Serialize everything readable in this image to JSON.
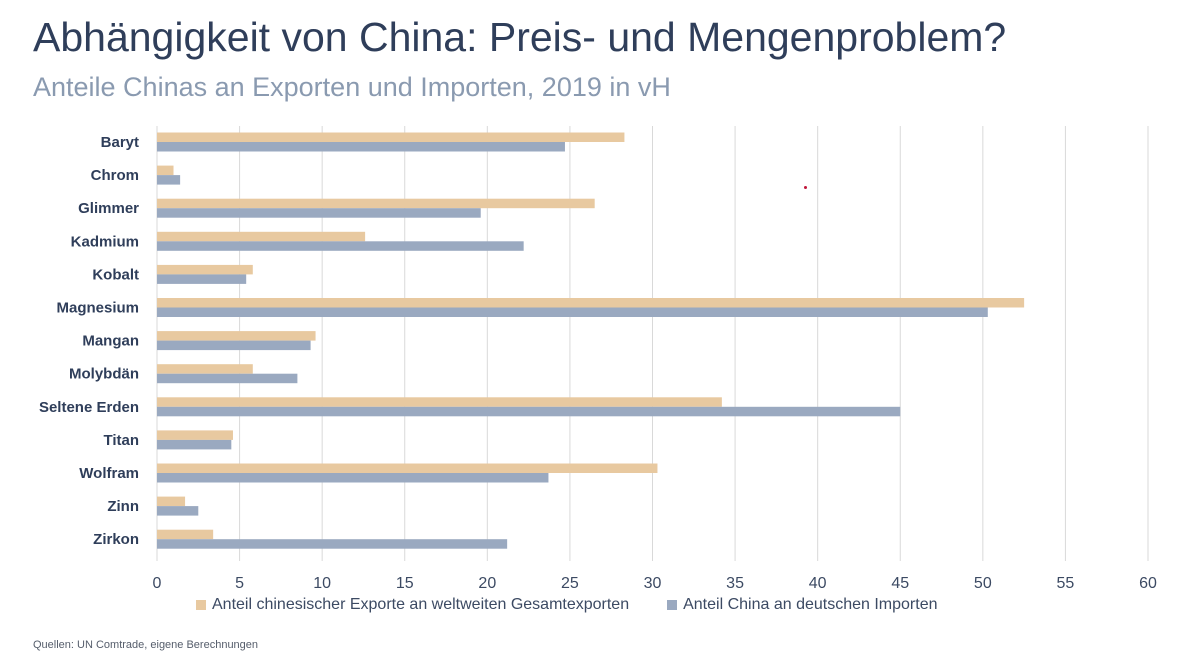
{
  "title": "Abhängigkeit von China: Preis- und Mengenproblem?",
  "subtitle": "Anteile Chinas an Exporten und Importen, 2019 in vH",
  "source": "Quellen: UN Comtrade, eigene Berechnungen",
  "colors": {
    "exports": "#e8c9a0",
    "imports": "#9aa9c0",
    "grid": "#d9d9d9",
    "text": "#2f3e5a"
  },
  "chart_data": {
    "type": "bar",
    "orientation": "horizontal",
    "categories": [
      "Baryt",
      "Chrom",
      "Glimmer",
      "Kadmium",
      "Kobalt",
      "Magnesium",
      "Mangan",
      "Molybdän",
      "Seltene Erden",
      "Titan",
      "Wolfram",
      "Zinn",
      "Zirkon"
    ],
    "series": [
      {
        "name": "Anteil chinesischer Exporte an weltweiten Gesamtexporten",
        "values": [
          28.3,
          1.0,
          26.5,
          12.6,
          5.8,
          52.5,
          9.6,
          5.8,
          34.2,
          4.6,
          30.3,
          1.7,
          3.4
        ]
      },
      {
        "name": "Anteil China an deutschen Importen",
        "values": [
          24.7,
          1.4,
          19.6,
          22.2,
          5.4,
          50.3,
          9.3,
          8.5,
          45.0,
          4.5,
          23.7,
          2.5,
          21.2
        ]
      }
    ],
    "xlim": [
      0,
      60
    ],
    "xticks": [
      0,
      5,
      10,
      15,
      20,
      25,
      30,
      35,
      40,
      45,
      50,
      55,
      60
    ],
    "grid": "vertical",
    "legend_position": "bottom"
  }
}
